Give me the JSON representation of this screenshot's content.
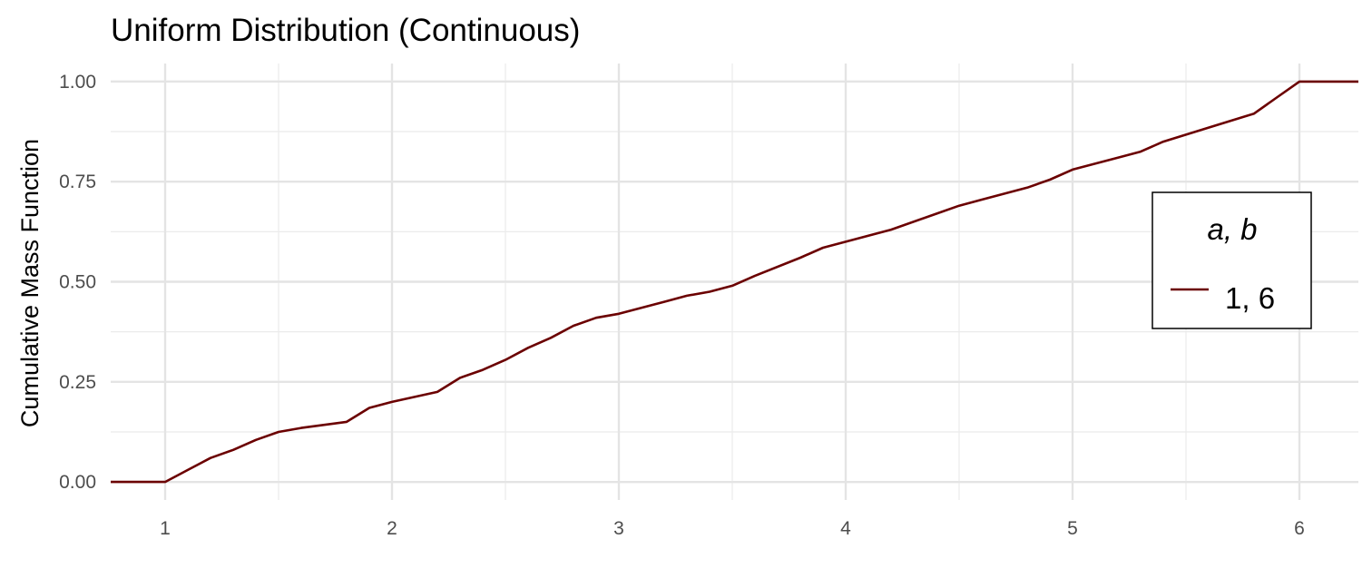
{
  "chart_data": {
    "type": "line",
    "title": "Uniform Distribution (Continuous)",
    "xlabel": "",
    "ylabel": "Cumulative Mass Function",
    "xlim": [
      0.76,
      6.26
    ],
    "ylim": [
      -0.045,
      1.045
    ],
    "x_ticks": [
      "1",
      "2",
      "3",
      "4",
      "5",
      "6"
    ],
    "x_tick_values": [
      1,
      2,
      3,
      4,
      5,
      6
    ],
    "y_ticks": [
      "0.00",
      "0.25",
      "0.50",
      "0.75",
      "1.00"
    ],
    "y_tick_values": [
      0,
      0.25,
      0.5,
      0.75,
      1.0
    ],
    "grid": true,
    "legend": {
      "title": "a, b",
      "position": "right",
      "entries": [
        {
          "label": "1, 6",
          "color": "#6b0000"
        }
      ]
    },
    "series": [
      {
        "name": "1, 6",
        "color": "#6b0000",
        "x": [
          0.76,
          1.0,
          1.1,
          1.2,
          1.3,
          1.4,
          1.5,
          1.6,
          1.8,
          1.9,
          2.0,
          2.2,
          2.3,
          2.4,
          2.5,
          2.6,
          2.7,
          2.8,
          2.9,
          3.0,
          3.2,
          3.3,
          3.4,
          3.5,
          3.6,
          3.8,
          3.9,
          4.0,
          4.2,
          4.4,
          4.5,
          4.6,
          4.8,
          4.9,
          5.0,
          5.2,
          5.3,
          5.4,
          5.6,
          5.8,
          5.9,
          6.0,
          6.26
        ],
        "y": [
          0.0,
          0.0,
          0.03,
          0.06,
          0.08,
          0.105,
          0.125,
          0.135,
          0.15,
          0.185,
          0.2,
          0.225,
          0.26,
          0.28,
          0.305,
          0.335,
          0.36,
          0.39,
          0.41,
          0.42,
          0.45,
          0.465,
          0.475,
          0.49,
          0.515,
          0.56,
          0.585,
          0.6,
          0.63,
          0.67,
          0.69,
          0.705,
          0.735,
          0.755,
          0.78,
          0.81,
          0.825,
          0.85,
          0.885,
          0.92,
          0.96,
          1.0,
          1.0
        ]
      }
    ]
  }
}
